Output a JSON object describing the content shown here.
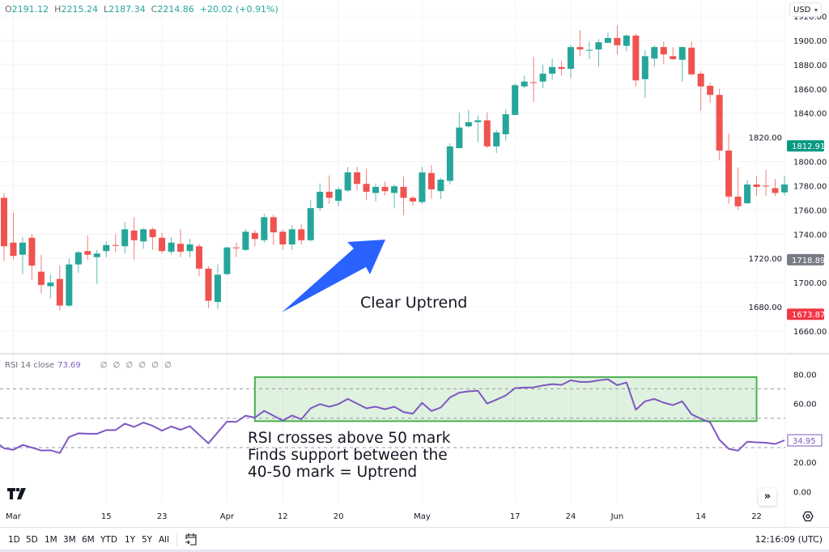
{
  "header": {
    "ohlc": [
      {
        "key": "O",
        "value": "2191.12"
      },
      {
        "key": "H",
        "value": "2215.24"
      },
      {
        "key": "L",
        "value": "2187.34"
      },
      {
        "key": "C",
        "value": "2214.86"
      }
    ],
    "change": "+20.02 (+0.91%)",
    "currency": "USD"
  },
  "rsi_header": {
    "label": "RSI 14 close",
    "value": "73.69",
    "placeholders": "∅ ∅ ∅ ∅ ∅ ∅"
  },
  "annotations": {
    "uptrend_label": "Clear Uptrend",
    "rsi_note_lines": [
      "RSI crosses above 50 mark",
      "Finds support between the",
      "40-50 mark = Uptrend"
    ],
    "arrow_color": "#2962ff",
    "highlight_color": "#4caf50"
  },
  "toolbar": {
    "ranges": [
      "1D",
      "5D",
      "1M",
      "3M",
      "6M",
      "YTD",
      "1Y",
      "5Y",
      "All"
    ],
    "time": "12:16:09 (UTC)"
  },
  "icons": {
    "logo": "tradingview-logo",
    "scroll": "double-chevron-right-icon",
    "settings": "gear-icon",
    "date_range": "calendar-goto-icon"
  },
  "colors": {
    "up": "#26a69a",
    "down": "#ef5350",
    "rsi": "#7e57c2"
  },
  "chart_data": [
    {
      "type": "candlestick",
      "ylim": [
        1650,
        1925
      ],
      "price_ticks": [
        "1920.00",
        "1900.00",
        "1880.00",
        "1860.00",
        "1840.00",
        "1820.00",
        "1800.00",
        "1780.00",
        "1760.00",
        "1740.00",
        "1720.00",
        "1700.00",
        "1680.00",
        "1660.00"
      ],
      "price_tick_values": [
        1920,
        1900,
        1880,
        1860,
        1840,
        1820,
        1800,
        1780,
        1760,
        1740,
        1720,
        1700,
        1680,
        1660
      ],
      "price_badges": [
        {
          "label": "1812.91",
          "value": 1812.91,
          "color": "#089981"
        },
        {
          "label": "1718.89",
          "value": 1718.89,
          "color": "#787b86"
        },
        {
          "label": "1673.87",
          "value": 1673.87,
          "color": "#f23645"
        }
      ],
      "x_ticks": [
        {
          "label": "Mar",
          "index": 1
        },
        {
          "label": "15",
          "index": 11
        },
        {
          "label": "23",
          "index": 17
        },
        {
          "label": "Apr",
          "index": 24
        },
        {
          "label": "12",
          "index": 30
        },
        {
          "label": "20",
          "index": 36
        },
        {
          "label": "May",
          "index": 45
        },
        {
          "label": "17",
          "index": 55
        },
        {
          "label": "24",
          "index": 61
        },
        {
          "label": "Jun",
          "index": 66
        },
        {
          "label": "14",
          "index": 75
        },
        {
          "label": "22",
          "index": 81
        }
      ],
      "ohlc_order": [
        "open",
        "high",
        "low",
        "close"
      ],
      "candles": [
        [
          1770,
          1774,
          1718,
          1730
        ],
        [
          1733,
          1758,
          1719,
          1722
        ],
        [
          1723,
          1737.5,
          1707,
          1733
        ],
        [
          1737,
          1740,
          1702,
          1714
        ],
        [
          1709,
          1723,
          1691,
          1698
        ],
        [
          1697,
          1707,
          1687,
          1700
        ],
        [
          1703,
          1714,
          1677,
          1681
        ],
        [
          1681,
          1720,
          1680,
          1715
        ],
        [
          1715,
          1726,
          1708,
          1725
        ],
        [
          1726,
          1739,
          1719,
          1723
        ],
        [
          1721,
          1727,
          1699,
          1724
        ],
        [
          1726,
          1734,
          1721,
          1731
        ],
        [
          1731,
          1740,
          1725,
          1730.5
        ],
        [
          1730,
          1750,
          1724,
          1744
        ],
        [
          1743,
          1754,
          1719,
          1735
        ],
        [
          1734,
          1745,
          1728,
          1744
        ],
        [
          1744,
          1745.5,
          1727,
          1737.5
        ],
        [
          1737,
          1741,
          1724,
          1726
        ],
        [
          1725.5,
          1737.5,
          1723,
          1733
        ],
        [
          1732,
          1744,
          1721,
          1725.5
        ],
        [
          1726,
          1736,
          1721,
          1731.5
        ],
        [
          1730,
          1732,
          1705,
          1711.5
        ],
        [
          1711.5,
          1713.5,
          1679,
          1685
        ],
        [
          1684,
          1715,
          1678,
          1706.5
        ],
        [
          1707,
          1729.5,
          1706,
          1729
        ],
        [
          1729,
          1733,
          1721,
          1728.5
        ],
        [
          1727,
          1744,
          1726,
          1742
        ],
        [
          1741,
          1743.5,
          1730,
          1736
        ],
        [
          1735,
          1757,
          1733,
          1754
        ],
        [
          1754,
          1756,
          1731,
          1741.5
        ],
        [
          1742,
          1744,
          1727,
          1731.5
        ],
        [
          1731.5,
          1747.5,
          1727,
          1744
        ],
        [
          1744,
          1748,
          1731.5,
          1735
        ],
        [
          1735,
          1768,
          1734,
          1761.5
        ],
        [
          1761.5,
          1782,
          1759,
          1775
        ],
        [
          1775,
          1788.5,
          1765,
          1770
        ],
        [
          1767.5,
          1779,
          1763,
          1777
        ],
        [
          1776,
          1795.5,
          1775,
          1791
        ],
        [
          1791,
          1795.5,
          1776,
          1781.5
        ],
        [
          1781.5,
          1794,
          1768,
          1775
        ],
        [
          1774,
          1781.5,
          1767,
          1779
        ],
        [
          1779,
          1783.5,
          1772,
          1775.5
        ],
        [
          1774,
          1781,
          1761.5,
          1779.5
        ],
        [
          1779,
          1787.5,
          1755.5,
          1770
        ],
        [
          1770,
          1771.5,
          1763.5,
          1767
        ],
        [
          1766.5,
          1795.5,
          1765,
          1791
        ],
        [
          1790.5,
          1797,
          1769.5,
          1777
        ],
        [
          1775.5,
          1786.5,
          1769,
          1785
        ],
        [
          1784,
          1815,
          1781,
          1812.5
        ],
        [
          1811,
          1840.5,
          1811,
          1828
        ],
        [
          1829,
          1842.5,
          1828,
          1832.5
        ],
        [
          1832.5,
          1838,
          1816,
          1834
        ],
        [
          1834,
          1840.5,
          1811,
          1812.5
        ],
        [
          1812.5,
          1826,
          1807,
          1824
        ],
        [
          1822.5,
          1843,
          1817,
          1839
        ],
        [
          1838.5,
          1864.5,
          1838,
          1863
        ],
        [
          1862,
          1871,
          1860.5,
          1866
        ],
        [
          1865.5,
          1886.5,
          1849,
          1865
        ],
        [
          1866,
          1880,
          1860.5,
          1872.5
        ],
        [
          1872.5,
          1885,
          1867,
          1878
        ],
        [
          1878,
          1883,
          1871,
          1876.5
        ],
        [
          1876.5,
          1896.5,
          1869,
          1894.5
        ],
        [
          1894.5,
          1908.5,
          1887,
          1892.5
        ],
        [
          1892,
          1899,
          1884.5,
          1892.2
        ],
        [
          1892.5,
          1901,
          1878.5,
          1898.5
        ],
        [
          1898,
          1906.5,
          1898,
          1902
        ],
        [
          1902,
          1912.5,
          1888.5,
          1896
        ],
        [
          1895.5,
          1905,
          1891,
          1904
        ],
        [
          1904,
          1905.5,
          1862,
          1867
        ],
        [
          1868,
          1892,
          1852.5,
          1887
        ],
        [
          1885,
          1896,
          1878.5,
          1894.5
        ],
        [
          1894.5,
          1899,
          1880.5,
          1888.5
        ],
        [
          1887,
          1894.5,
          1884,
          1884.5
        ],
        [
          1884,
          1895,
          1866,
          1894.5
        ],
        [
          1894,
          1899,
          1871,
          1872
        ],
        [
          1872.5,
          1874.5,
          1842,
          1862
        ],
        [
          1862.5,
          1865,
          1848.5,
          1855
        ],
        [
          1855,
          1860,
          1801,
          1809
        ],
        [
          1809,
          1823,
          1765,
          1771
        ],
        [
          1771,
          1795,
          1760,
          1763
        ],
        [
          1765.5,
          1784.5,
          1765,
          1781
        ],
        [
          1781,
          1788,
          1771.5,
          1779
        ],
        [
          1780,
          1793,
          1771.5,
          1779.5
        ],
        [
          1778,
          1785.5,
          1771.5,
          1774
        ],
        [
          1774.5,
          1788,
          1772,
          1781
        ]
      ]
    },
    {
      "type": "line",
      "name": "RSI 14 close",
      "ylim": [
        0,
        85
      ],
      "y_ticks": [
        "80.00",
        "60.00",
        "20.00",
        "0.00"
      ],
      "y_tick_values": [
        80,
        60,
        20,
        0
      ],
      "bands": [
        70,
        50,
        30
      ],
      "last_value_label": "34.95",
      "highlight_zone": {
        "from_index": 27,
        "to_index": 81,
        "from_value": 48,
        "to_value": 78
      },
      "values": [
        29.5,
        28.5,
        31.8,
        30,
        28,
        28.2,
        26.3,
        37.2,
        39.7,
        39.4,
        39.4,
        41.9,
        41.9,
        46.3,
        44.1,
        47,
        44.8,
        41.5,
        44.4,
        42.1,
        44.6,
        38.7,
        32.9,
        40.4,
        47.7,
        47.5,
        51.7,
        50.4,
        55,
        51.7,
        48.4,
        51.9,
        49.3,
        56.7,
        59.6,
        57.8,
        59.6,
        63.1,
        60,
        56.7,
        57.8,
        56.1,
        57.8,
        54.2,
        53.1,
        60.4,
        54.9,
        57.3,
        64.1,
        67.4,
        68.3,
        68.7,
        60,
        62.6,
        65.5,
        70.5,
        70.8,
        71,
        72.3,
        73.2,
        72.7,
        75.8,
        74.7,
        74.7,
        75.8,
        76.5,
        72.5,
        74.3,
        55.8,
        61.5,
        63.1,
        60.6,
        58.9,
        61.5,
        52.7,
        49.6,
        47.2,
        35.3,
        29.2,
        27.9,
        34,
        33.6,
        33.3,
        32.5,
        34.95
      ]
    }
  ]
}
